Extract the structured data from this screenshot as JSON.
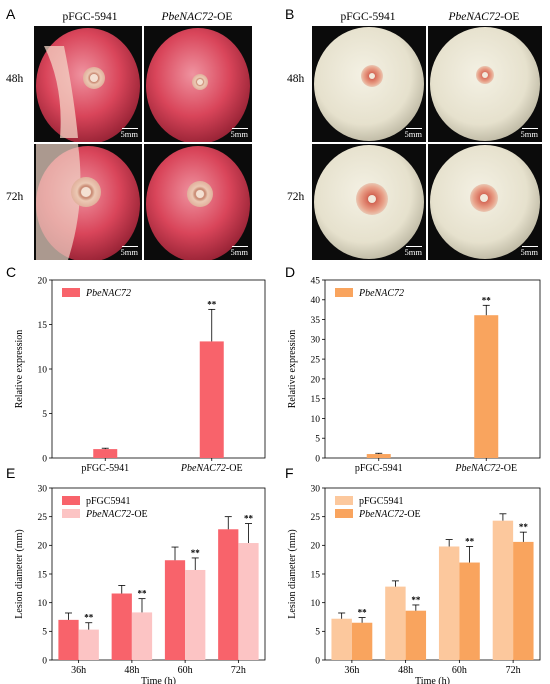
{
  "panels": {
    "A": {
      "letter": "A",
      "col_left": "pFGC-5941",
      "col_right_italic": "PbeNAC72",
      "col_right_suffix": "-OE",
      "row_top": "48h",
      "row_bottom": "72h",
      "scale": "5mm"
    },
    "B": {
      "letter": "B",
      "col_left": "pFGC-5941",
      "col_right_italic": "PbeNAC72",
      "col_right_suffix": "-OE",
      "row_top": "48h",
      "row_bottom": "72h",
      "scale": "5mm"
    },
    "C": {
      "letter": "C"
    },
    "D": {
      "letter": "D"
    },
    "E": {
      "letter": "E"
    },
    "F": {
      "letter": "F"
    }
  },
  "colors": {
    "red": "#f8636b",
    "pink": "#fcc4c4",
    "orange": "#f9a45e",
    "peach": "#fcc89d",
    "red_apple": "#d9455a",
    "white_apple": "#e6e1cd"
  },
  "chart_data": [
    {
      "id": "C",
      "type": "bar",
      "legend": [
        "PbeNAC72"
      ],
      "legend_italic": true,
      "ylabel": "Relative expression",
      "xlabel": "",
      "ylim": [
        0,
        20
      ],
      "yticks": [
        0,
        5,
        10,
        15,
        20
      ],
      "categories": [
        {
          "pre": "pFGC-5941",
          "ital": "",
          "post": ""
        },
        {
          "pre": "",
          "ital": "PbeNAC72",
          "post": "-OE"
        }
      ],
      "series": [
        {
          "name": "PbeNAC72",
          "color": "#f8636b",
          "values": [
            1.0,
            13.1
          ],
          "errors": [
            0.1,
            3.6
          ],
          "sig": [
            "",
            "**"
          ]
        }
      ]
    },
    {
      "id": "D",
      "type": "bar",
      "legend": [
        "PbeNAC72"
      ],
      "legend_italic": true,
      "ylabel": "Relative expression",
      "xlabel": "",
      "ylim": [
        0,
        45
      ],
      "yticks": [
        0,
        5,
        10,
        15,
        20,
        25,
        30,
        35,
        40,
        45
      ],
      "categories": [
        {
          "pre": "pFGC-5941",
          "ital": "",
          "post": ""
        },
        {
          "pre": "",
          "ital": "PbeNAC72",
          "post": "-OE"
        }
      ],
      "series": [
        {
          "name": "PbeNAC72",
          "color": "#f9a45e",
          "values": [
            1.0,
            36.1
          ],
          "errors": [
            0.2,
            2.5
          ],
          "sig": [
            "",
            "**"
          ]
        }
      ]
    },
    {
      "id": "E",
      "type": "bar",
      "legend": [
        "pFGC5941",
        "PbeNAC72-OE"
      ],
      "legend_italic": false,
      "ylabel": "Lesion diameter (mm)",
      "xlabel": "Time (h)",
      "ylim": [
        0,
        30
      ],
      "yticks": [
        0,
        5,
        10,
        15,
        20,
        25,
        30
      ],
      "categories": [
        {
          "pre": "36h",
          "ital": "",
          "post": ""
        },
        {
          "pre": "48h",
          "ital": "",
          "post": ""
        },
        {
          "pre": "60h",
          "ital": "",
          "post": ""
        },
        {
          "pre": "72h",
          "ital": "",
          "post": ""
        }
      ],
      "series": [
        {
          "name": "pFGC5941",
          "color": "#f8636b",
          "values": [
            7.0,
            11.6,
            17.4,
            22.8
          ],
          "errors": [
            1.2,
            1.4,
            2.3,
            2.2
          ],
          "sig": [
            "",
            "",
            "",
            ""
          ]
        },
        {
          "name": "PbeNAC72-OE",
          "color": "#fcc4c4",
          "values": [
            5.3,
            8.3,
            15.7,
            20.4
          ],
          "errors": [
            1.2,
            2.4,
            2.1,
            3.4
          ],
          "sig": [
            "**",
            "**",
            "**",
            "**"
          ]
        }
      ]
    },
    {
      "id": "F",
      "type": "bar",
      "legend": [
        "pFGC5941",
        "PbeNAC72-OE"
      ],
      "legend_italic": false,
      "ylabel": "Lesion diameter (mm)",
      "xlabel": "Time (h)",
      "ylim": [
        0,
        30
      ],
      "yticks": [
        0,
        5,
        10,
        15,
        20,
        25,
        30
      ],
      "categories": [
        {
          "pre": "36h",
          "ital": "",
          "post": ""
        },
        {
          "pre": "48h",
          "ital": "",
          "post": ""
        },
        {
          "pre": "60h",
          "ital": "",
          "post": ""
        },
        {
          "pre": "72h",
          "ital": "",
          "post": ""
        }
      ],
      "series": [
        {
          "name": "pFGC5941",
          "color": "#fcc89d",
          "values": [
            7.2,
            12.8,
            19.8,
            24.3
          ],
          "errors": [
            1.0,
            1.0,
            1.2,
            1.2
          ],
          "sig": [
            "",
            "",
            "",
            ""
          ]
        },
        {
          "name": "PbeNAC72-OE",
          "color": "#f9a45e",
          "values": [
            6.5,
            8.6,
            17.0,
            20.6
          ],
          "errors": [
            0.9,
            1.0,
            2.8,
            1.7
          ],
          "sig": [
            "**",
            "**",
            "**",
            "**"
          ]
        }
      ]
    }
  ]
}
